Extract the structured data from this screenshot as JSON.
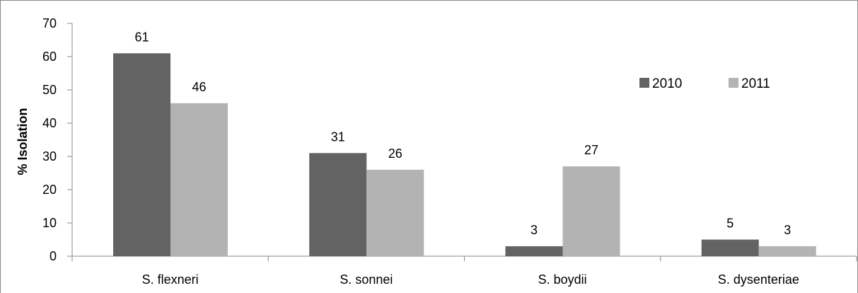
{
  "chart_data": {
    "type": "bar",
    "title": "",
    "xlabel": "",
    "ylabel": "% Isolation",
    "categories": [
      "S. flexneri",
      "S. sonnei",
      "S. boydii",
      "S. dysenteriae"
    ],
    "series": [
      {
        "name": "2010",
        "values": [
          61,
          31,
          3,
          5
        ],
        "color": "#636363"
      },
      {
        "name": "2011",
        "values": [
          46,
          26,
          27,
          3
        ],
        "color": "#b3b3b3"
      }
    ],
    "ylim": [
      0,
      70
    ],
    "yticks": [
      0,
      10,
      20,
      30,
      40,
      50,
      60,
      70
    ],
    "grid": false,
    "legend_position": "top-right",
    "data_labels": true
  }
}
